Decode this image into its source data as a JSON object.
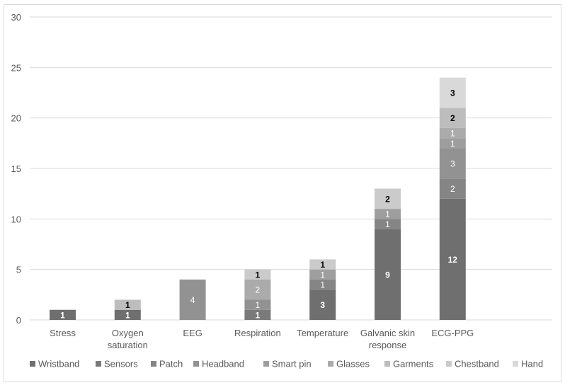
{
  "chart_data": {
    "type": "bar",
    "stacked": true,
    "categories": [
      "Stress",
      "Oxygen saturation",
      "EEG",
      "Respiration",
      "Temperature",
      "Galvanic skin response",
      "ECG-PPG"
    ],
    "series": [
      {
        "name": "Wristband",
        "color": "#6f6f6f",
        "values": [
          1,
          1,
          0,
          0,
          3,
          9,
          12
        ]
      },
      {
        "name": "Sensors",
        "color": "#7a7a7a",
        "values": [
          0,
          0,
          0,
          1,
          0,
          0,
          0
        ]
      },
      {
        "name": "Patch",
        "color": "#858585",
        "values": [
          0,
          0,
          0,
          0,
          1,
          1,
          2
        ]
      },
      {
        "name": "Headband",
        "color": "#929292",
        "values": [
          0,
          0,
          4,
          1,
          0,
          0,
          3
        ]
      },
      {
        "name": "Smart pin",
        "color": "#9e9e9e",
        "values": [
          0,
          0,
          0,
          0,
          1,
          1,
          1
        ]
      },
      {
        "name": "Glasses",
        "color": "#ababab",
        "values": [
          0,
          0,
          0,
          2,
          0,
          0,
          1
        ]
      },
      {
        "name": "Garments",
        "color": "#bdbdbd",
        "values": [
          0,
          1,
          0,
          0,
          0,
          0,
          2
        ]
      },
      {
        "name": "Chestband",
        "color": "#cbcbcb",
        "values": [
          0,
          0,
          0,
          1,
          1,
          2,
          0
        ]
      },
      {
        "name": "Hand",
        "color": "#d9d9d9",
        "values": [
          0,
          0,
          0,
          0,
          0,
          0,
          3
        ]
      }
    ],
    "ylim": [
      0,
      30
    ],
    "yticks": [
      0,
      5,
      10,
      15,
      20,
      25,
      30
    ],
    "grid": true,
    "legend_position": "bottom"
  }
}
